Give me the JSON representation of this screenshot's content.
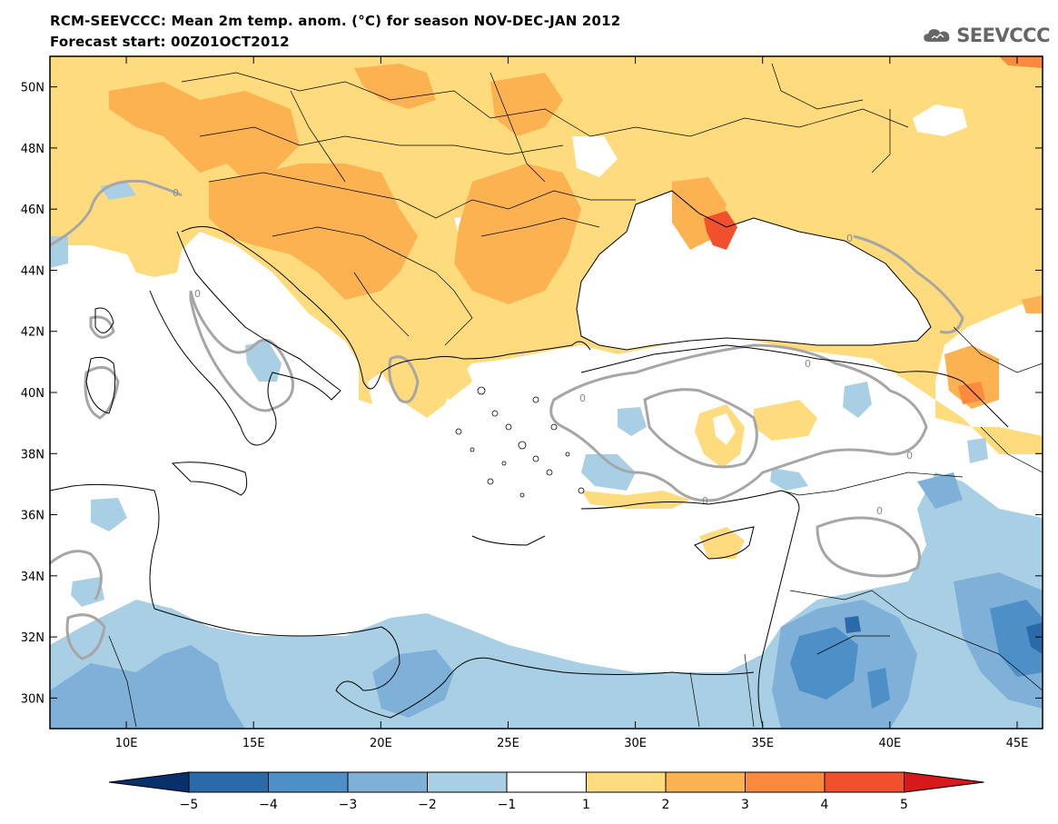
{
  "title": {
    "line1": "RCM-SEEVCCC: Mean 2m temp. anom. (°C) for season NOV-DEC-JAN 2012",
    "line2": "Forecast start: 00Z01OCT2012"
  },
  "logo": {
    "text": "SEEVCCC",
    "icon": "cloud-icon"
  },
  "map": {
    "lon_range": [
      7,
      46
    ],
    "lat_range": [
      29,
      51
    ],
    "lat_ticks": [
      "30N",
      "32N",
      "34N",
      "36N",
      "38N",
      "40N",
      "42N",
      "44N",
      "46N",
      "48N",
      "50N"
    ],
    "lat_values": [
      30,
      32,
      34,
      36,
      38,
      40,
      42,
      44,
      46,
      48,
      50
    ],
    "lon_ticks": [
      "10E",
      "15E",
      "20E",
      "25E",
      "30E",
      "35E",
      "40E",
      "45E"
    ],
    "lon_values": [
      10,
      15,
      20,
      25,
      30,
      35,
      40,
      45
    ],
    "contour_label": "0"
  },
  "colorbar": {
    "labels": [
      "−5",
      "−4",
      "−3",
      "−2",
      "−1",
      "1",
      "2",
      "3",
      "4",
      "5"
    ],
    "colors": [
      "#08306b",
      "#2b6aa8",
      "#4d8fc7",
      "#7fb0d8",
      "#a9cfe5",
      "#ffffff",
      "#fedb7c",
      "#fcb250",
      "#fb8a3c",
      "#f0502b",
      "#d7191c"
    ]
  }
}
